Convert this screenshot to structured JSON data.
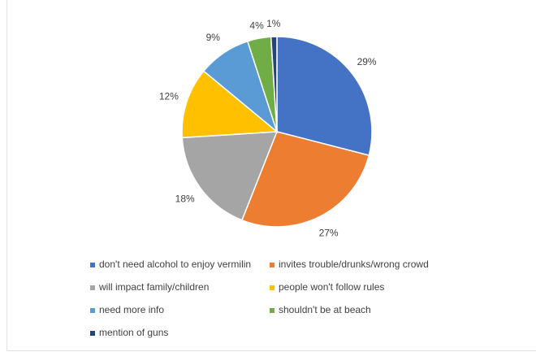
{
  "chart_data": {
    "type": "pie",
    "title": "",
    "categories": [
      "don't need alcohol to enjoy vermilin",
      "invites trouble/drunks/wrong crowd",
      "will impact family/children",
      "people won't follow rules",
      "need more info",
      "shouldn't be at beach",
      "mention of guns"
    ],
    "values": [
      29,
      27,
      18,
      12,
      9,
      4,
      1
    ],
    "labels": [
      "29%",
      "27%",
      "18%",
      "12%",
      "9%",
      "4%",
      "1%"
    ],
    "colors": [
      "#4472C4",
      "#ED7D31",
      "#A5A5A5",
      "#FFC000",
      "#5B9BD5",
      "#70AD47",
      "#264478"
    ],
    "legend_position": "bottom",
    "start_angle": "12 o'clock, clockwise"
  }
}
